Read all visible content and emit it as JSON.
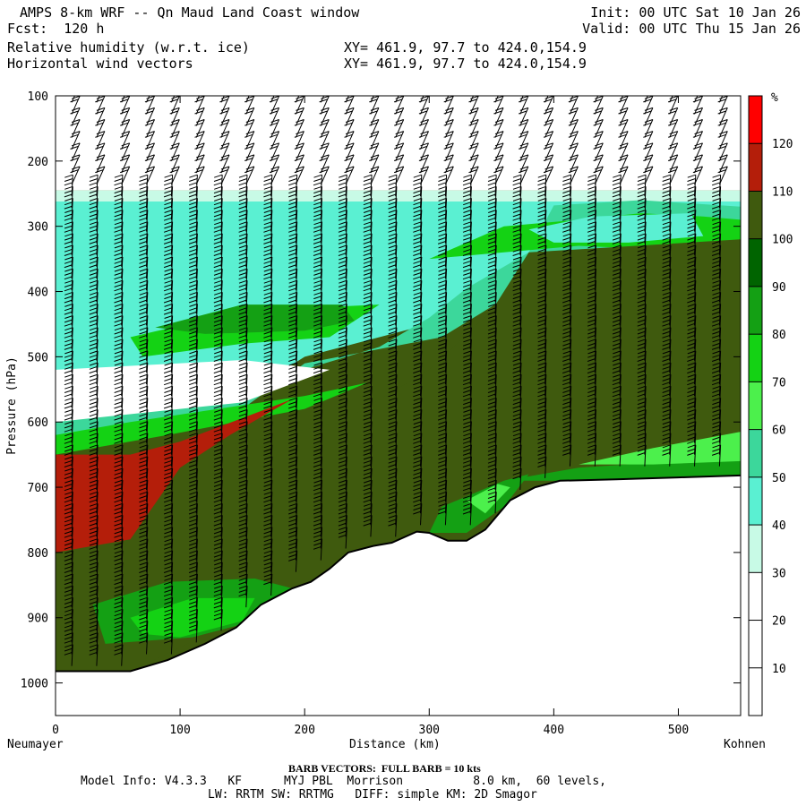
{
  "header": {
    "title": "AMPS 8-km WRF -- Qn Maud Land Coast window",
    "forecast": "Fcst:  120 h",
    "field1": "Relative humidity (w.r.t. ice)",
    "field2": "Horizontal wind vectors",
    "init": "Init: 00 UTC Sat 10 Jan 26",
    "valid": "Valid: 00 UTC Thu 15 Jan 26",
    "xy1": "XY= 461.9, 97.7 to 424.0,154.9",
    "xy2": "XY= 461.9, 97.7 to 424.0,154.9"
  },
  "footer": {
    "barb_note": "BARB VECTORS:  FULL BARB = 10 kts",
    "model_line1": "Model Info: V4.3.3   KF      MYJ PBL  Morrison          8.0 km,  60 levels,",
    "model_line2": "LW: RRTM SW: RRTMG   DIFF: simple KM: 2D Smagor"
  },
  "chart_data": {
    "type": "heatmap",
    "xlabel": "Distance (km)",
    "ylabel": "Pressure (hPa)",
    "x_start_label": "Neumayer",
    "x_end_label": "Kohnen",
    "xlim": [
      0,
      550
    ],
    "ylim": [
      1050,
      100
    ],
    "x_ticks": [
      0,
      100,
      200,
      300,
      400,
      500
    ],
    "y_ticks": [
      100,
      200,
      300,
      400,
      500,
      600,
      700,
      800,
      900,
      1000
    ],
    "colorbar": {
      "unit": "%",
      "levels": [
        10,
        20,
        30,
        40,
        50,
        60,
        70,
        80,
        90,
        100,
        110,
        120
      ],
      "colors": [
        "#ffffff",
        "#ffffff",
        "#ffffff",
        "#c8fae6",
        "#5af0d2",
        "#3cd79b",
        "#4cf04c",
        "#14d214",
        "#14a014",
        "#006400",
        "#3f5a0e",
        "#b41e0a",
        "#ff0000"
      ]
    },
    "terrain_surface": [
      {
        "x": 0,
        "p": 982
      },
      {
        "x": 60,
        "p": 982
      },
      {
        "x": 90,
        "p": 965
      },
      {
        "x": 120,
        "p": 940
      },
      {
        "x": 145,
        "p": 915
      },
      {
        "x": 165,
        "p": 880
      },
      {
        "x": 190,
        "p": 855
      },
      {
        "x": 205,
        "p": 845
      },
      {
        "x": 220,
        "p": 825
      },
      {
        "x": 235,
        "p": 800
      },
      {
        "x": 255,
        "p": 790
      },
      {
        "x": 270,
        "p": 785
      },
      {
        "x": 290,
        "p": 768
      },
      {
        "x": 300,
        "p": 770
      },
      {
        "x": 315,
        "p": 782
      },
      {
        "x": 330,
        "p": 782
      },
      {
        "x": 345,
        "p": 765
      },
      {
        "x": 365,
        "p": 720
      },
      {
        "x": 385,
        "p": 700
      },
      {
        "x": 405,
        "p": 690
      },
      {
        "x": 450,
        "p": 688
      },
      {
        "x": 500,
        "p": 685
      },
      {
        "x": 550,
        "p": 682
      }
    ],
    "wind_barbs": "present"
  }
}
